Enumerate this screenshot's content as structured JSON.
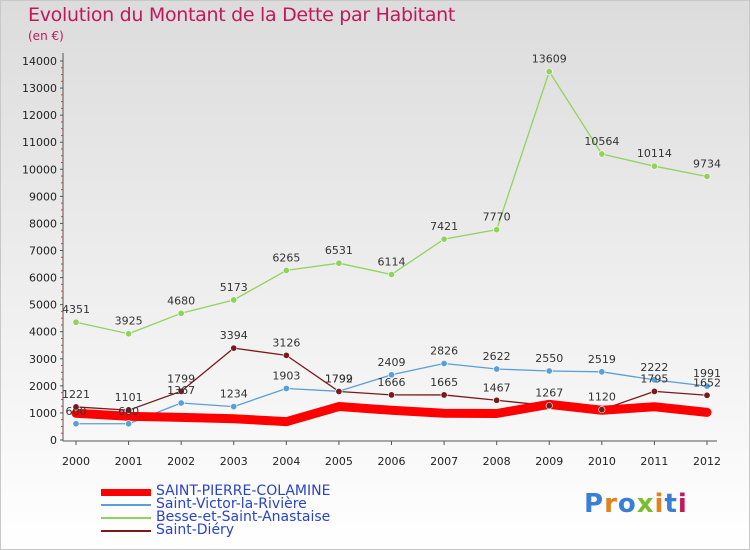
{
  "header": {
    "title": "Evolution du Montant de la Dette par Habitant",
    "unit": "(en €)"
  },
  "logo": {
    "text": "Proxiti",
    "letter_colors": [
      "#3a7fd5",
      "#e0821e",
      "#3a7fd5",
      "#7bbd2a",
      "#e0821e",
      "#3a7fd5",
      "#c2185b"
    ]
  },
  "chart_data": {
    "type": "line",
    "title": "Evolution du Montant de la Dette par Habitant",
    "subtitle": "(en €)",
    "xlabel": "",
    "ylabel": "",
    "categories": [
      "2000",
      "2001",
      "2002",
      "2003",
      "2004",
      "2005",
      "2006",
      "2007",
      "2008",
      "2009",
      "2010",
      "2011",
      "2012"
    ],
    "ylim": [
      0,
      14000
    ],
    "yticks": [
      0,
      1000,
      2000,
      3000,
      4000,
      5000,
      6000,
      7000,
      8000,
      9000,
      10000,
      11000,
      12000,
      13000,
      14000
    ],
    "grid": false,
    "legend_position": "bottom-left",
    "series": [
      {
        "name": "SAINT-PIERRE-COLAMINE",
        "color": "#ff0000",
        "values": [
          990,
          875,
          835,
          787,
          678,
          1236,
          1099,
          987,
          979,
          1317,
          1099,
          1228,
          1021
        ],
        "labels_shown": false
      },
      {
        "name": "Saint-Victor-la-Rivière",
        "color": "#5a9fd6",
        "values": [
          600,
          600,
          1367,
          1234,
          1903,
          1799,
          2409,
          2826,
          2622,
          2550,
          2519,
          2222,
          1991
        ],
        "labels_shown": true
      },
      {
        "name": "Besse-et-Saint-Anastaise",
        "color": "#90d35a",
        "values": [
          4351,
          3925,
          4680,
          5173,
          6265,
          6531,
          6114,
          7421,
          7770,
          13609,
          10564,
          10114,
          9734
        ],
        "labels_shown": true
      },
      {
        "name": "Saint-Diéry",
        "color": "#7a1a1a",
        "values": [
          1221,
          1101,
          1799,
          3394,
          3126,
          1792,
          1666,
          1665,
          1467,
          1267,
          1120,
          1795,
          1652
        ],
        "labels_shown": true
      }
    ]
  }
}
